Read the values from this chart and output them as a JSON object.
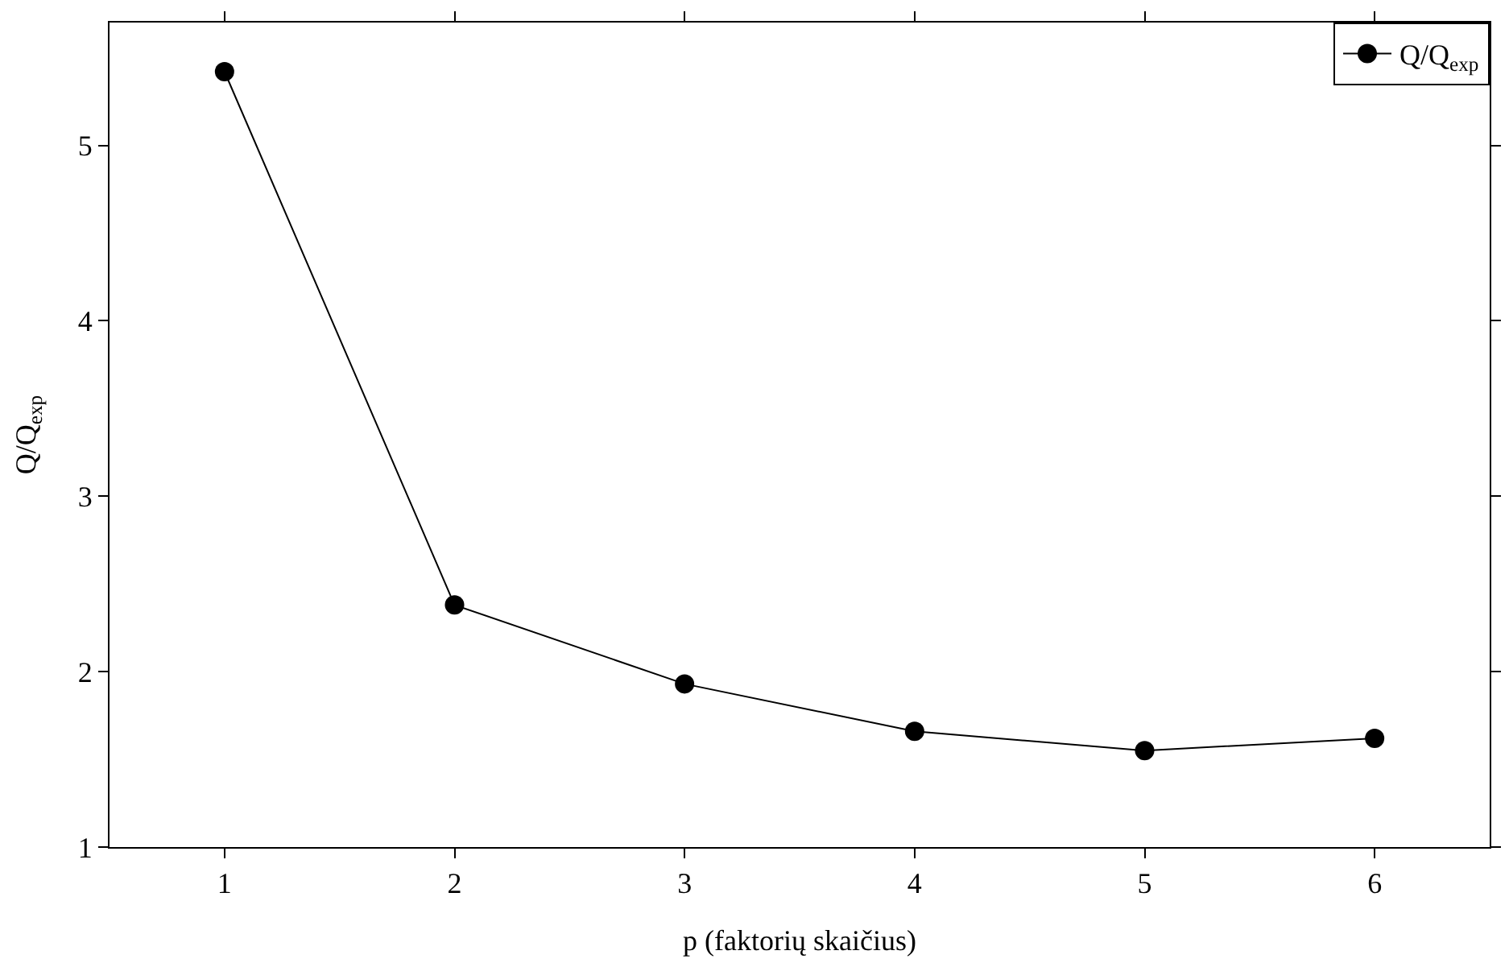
{
  "chart_data": {
    "type": "line",
    "xlabel": "p (faktorių skaičius)",
    "ylabel": "Q/Q$_{exp}$",
    "x": [
      1,
      2,
      3,
      4,
      5,
      6
    ],
    "series": [
      {
        "name": "Q/Q$_{exp}$",
        "color": "#000000",
        "values": [
          5.42,
          2.38,
          1.93,
          1.66,
          1.55,
          1.62
        ]
      }
    ],
    "xlim": [
      0.5,
      6.5
    ],
    "ylim": [
      1,
      5.7
    ],
    "xticks": [
      1,
      2,
      3,
      4,
      5,
      6
    ],
    "yticks": [
      1,
      2,
      3,
      4,
      5
    ],
    "grid": false,
    "legend": "top right",
    "marker": "circle",
    "line_style": "solid"
  }
}
